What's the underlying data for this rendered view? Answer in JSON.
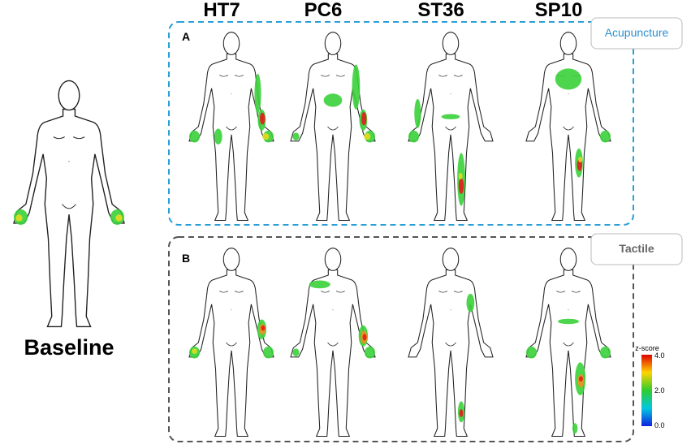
{
  "columns": [
    "HT7",
    "PC6",
    "ST36",
    "SP10"
  ],
  "panels": [
    {
      "letter": "A",
      "label": "Acupuncture"
    },
    {
      "letter": "B",
      "label": "Tactile"
    }
  ],
  "baseline": "Baseline",
  "colorbar": {
    "title": "z-score",
    "ticks": [
      "4.0",
      "2.0",
      "0.0"
    ]
  }
}
